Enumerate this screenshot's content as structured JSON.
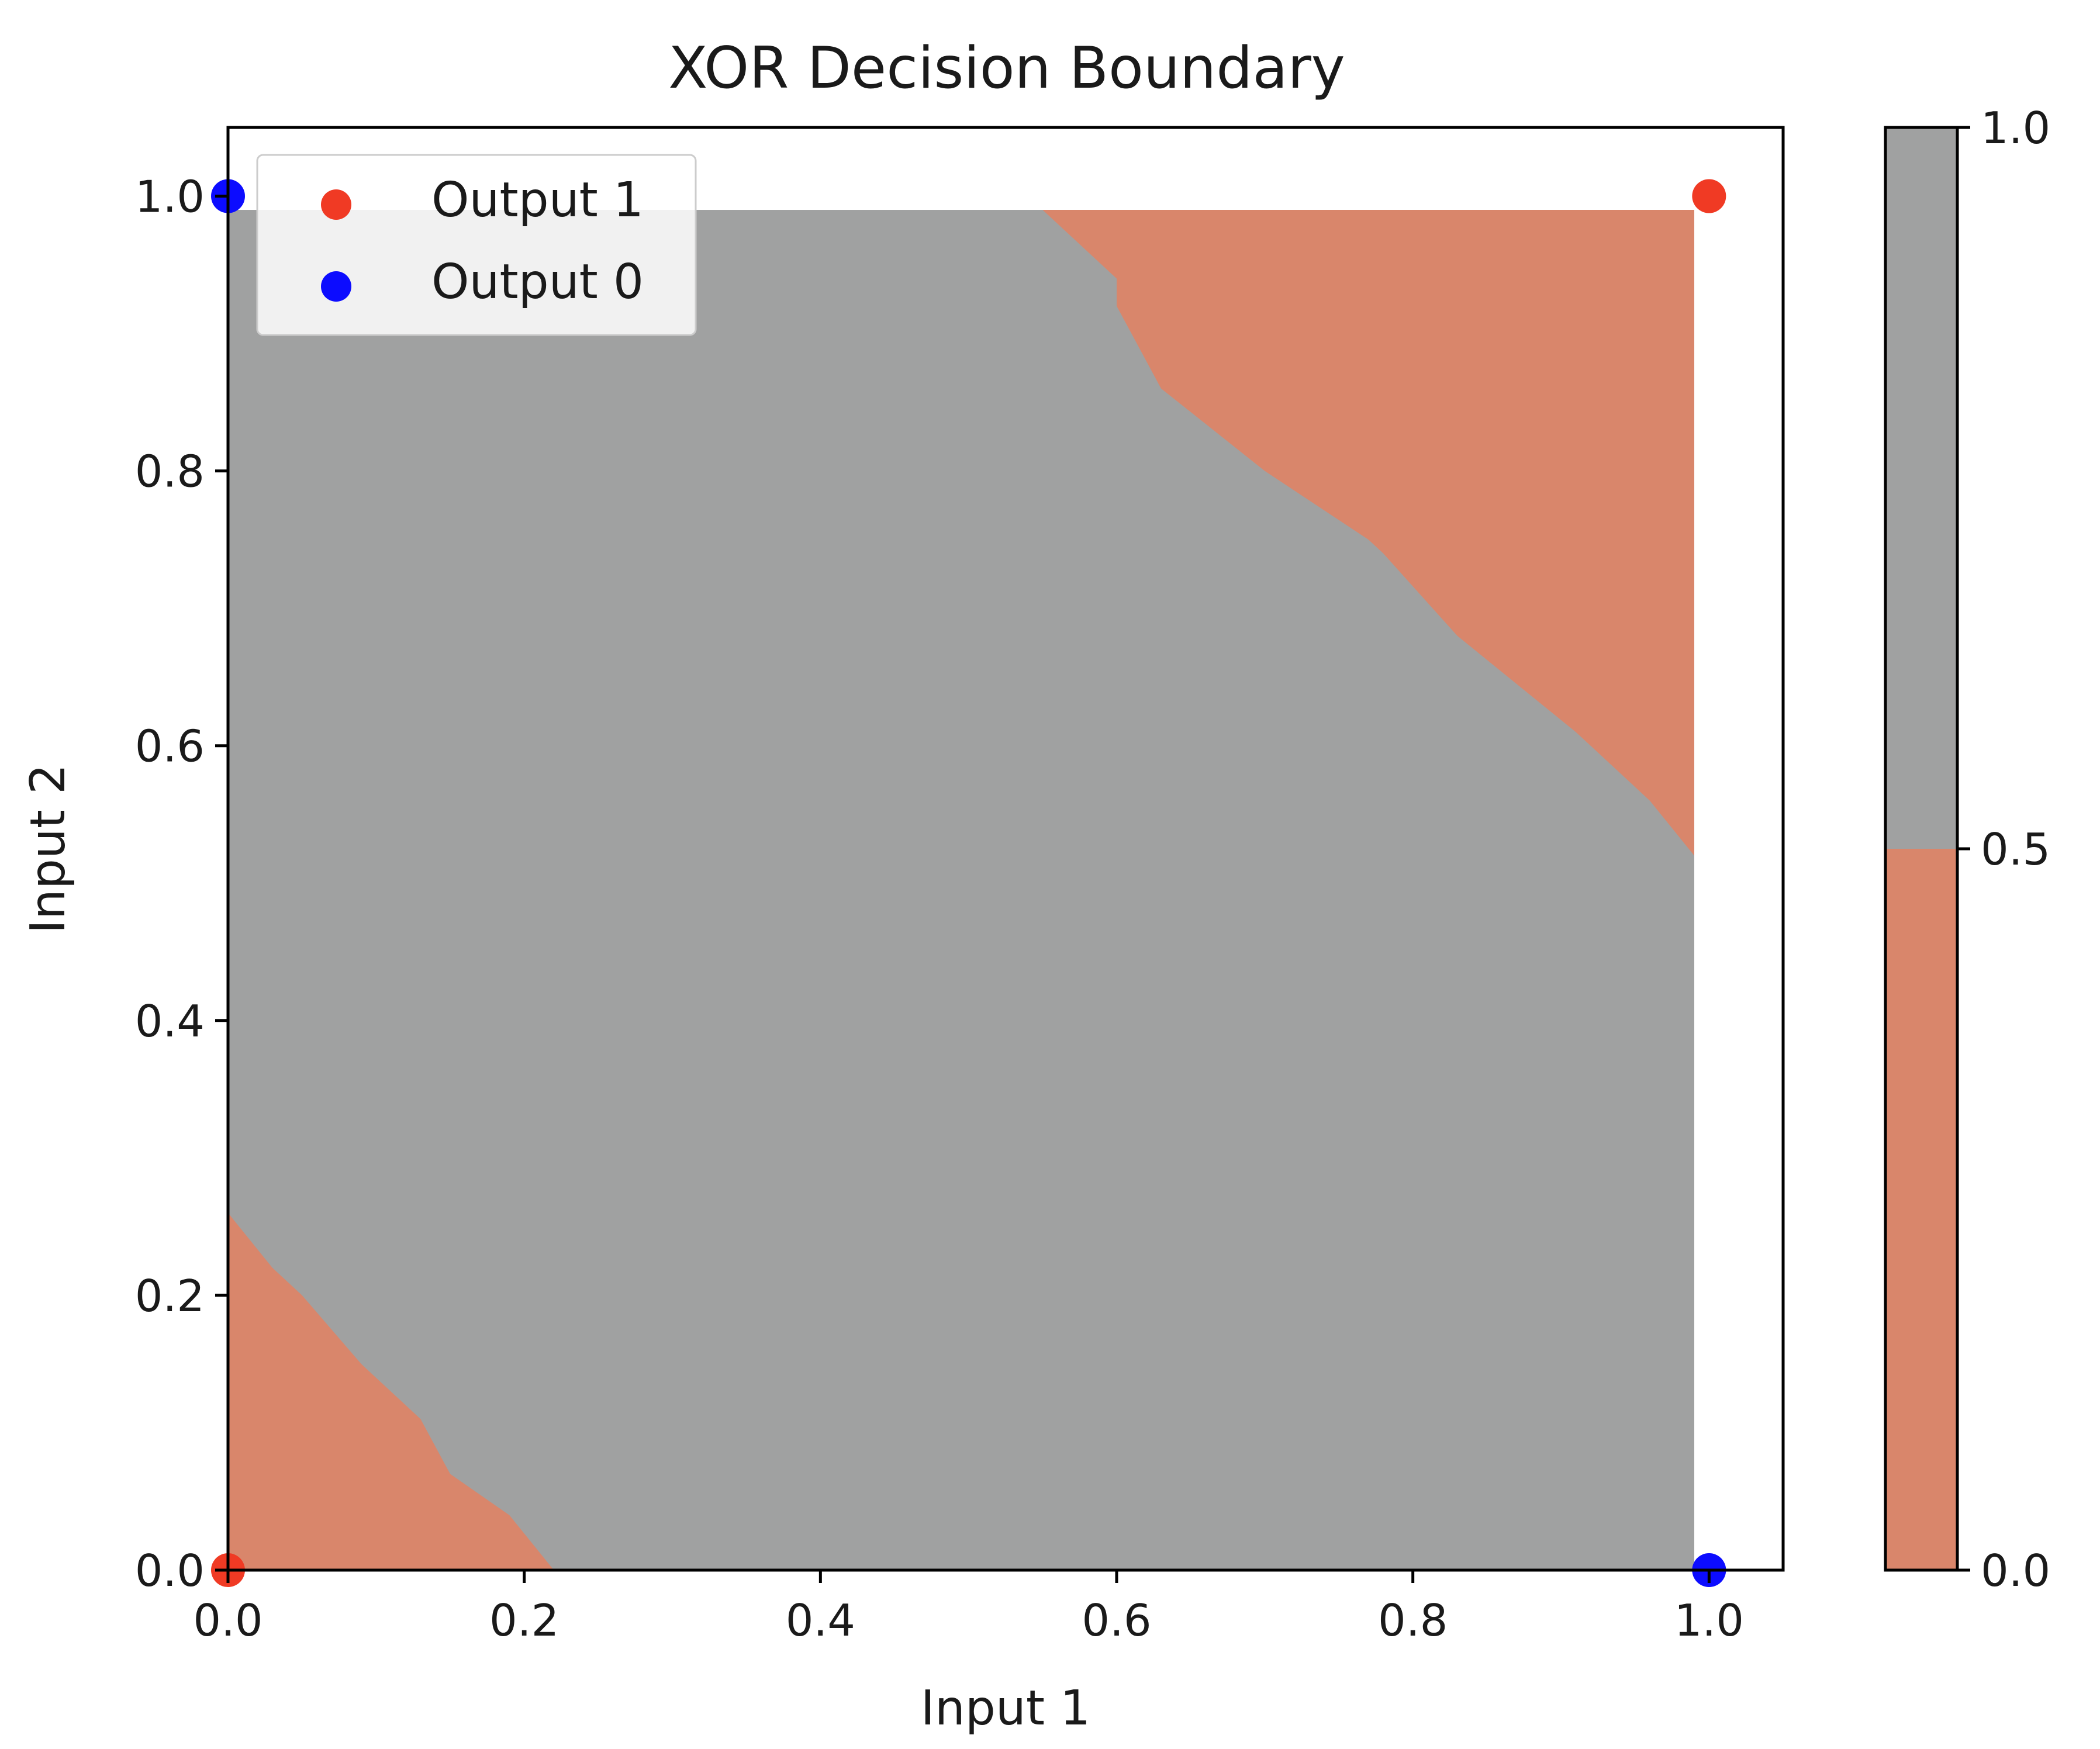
{
  "chart_data": {
    "type": "contour",
    "title": "XOR Decision Boundary",
    "xlabel": "Input 1",
    "ylabel": "Input 2",
    "xlim": [
      0.0,
      1.05
    ],
    "ylim": [
      0.0,
      1.05
    ],
    "grid_extent": [
      0.0,
      0.99
    ],
    "x_ticks": [
      "0.0",
      "0.2",
      "0.4",
      "0.6",
      "0.8",
      "1.0"
    ],
    "y_ticks": [
      "0.0",
      "0.2",
      "0.4",
      "0.6",
      "0.8",
      "1.0"
    ],
    "grid": false,
    "legend_position": "top-left",
    "regions": [
      {
        "level": [
          0.0,
          0.5
        ],
        "color": "#d9866b",
        "polygon": [
          [
            0.0,
            0.0
          ],
          [
            0.22,
            0.0
          ],
          [
            0.19,
            0.04
          ],
          [
            0.15,
            0.07
          ],
          [
            0.13,
            0.11
          ],
          [
            0.09,
            0.15
          ],
          [
            0.05,
            0.2
          ],
          [
            0.03,
            0.22
          ],
          [
            0.0,
            0.26
          ]
        ]
      },
      {
        "level": [
          0.0,
          0.5
        ],
        "color": "#d9866b",
        "polygon": [
          [
            0.55,
            0.99
          ],
          [
            0.99,
            0.99
          ],
          [
            0.99,
            0.52
          ],
          [
            0.96,
            0.56
          ],
          [
            0.91,
            0.61
          ],
          [
            0.83,
            0.68
          ],
          [
            0.78,
            0.74
          ],
          [
            0.77,
            0.75
          ],
          [
            0.7,
            0.8
          ],
          [
            0.63,
            0.86
          ],
          [
            0.6,
            0.92
          ],
          [
            0.6,
            0.94
          ]
        ]
      }
    ],
    "background_region": {
      "level": [
        0.5,
        1.0
      ],
      "color": "#a0a1a1"
    },
    "series": [
      {
        "name": "Output 1",
        "color": "#f03a24",
        "points": [
          [
            0.0,
            0.0
          ],
          [
            1.0,
            1.0
          ]
        ]
      },
      {
        "name": "Output 0",
        "color": "#0c0cff",
        "points": [
          [
            0.0,
            1.0
          ],
          [
            1.0,
            0.0
          ]
        ]
      }
    ],
    "colorbar": {
      "ticks": [
        "0.0",
        "0.5",
        "1.0"
      ],
      "range": [
        0.0,
        1.0
      ],
      "bands": [
        {
          "from": 0.0,
          "to": 0.5,
          "color": "#d9866b"
        },
        {
          "from": 0.5,
          "to": 1.0,
          "color": "#a0a1a1"
        }
      ]
    }
  }
}
